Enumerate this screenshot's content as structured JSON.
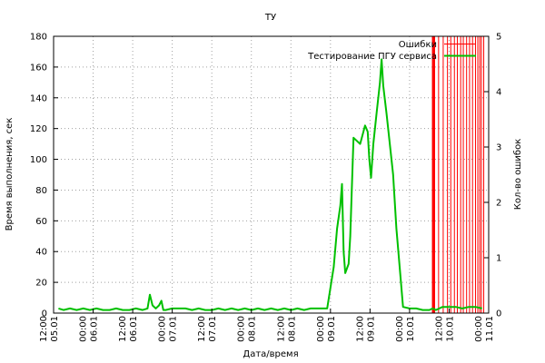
{
  "chart_data": {
    "type": "line",
    "title": "ТУ",
    "xlabel": "Дата/время",
    "ylabel": "Время выполнения, сек",
    "y2label": "Кол-во ошибок",
    "ylim": [
      0,
      180
    ],
    "y2lim": [
      0,
      5
    ],
    "yticks": [
      0,
      20,
      40,
      60,
      80,
      100,
      120,
      140,
      160,
      180
    ],
    "y2ticks": [
      0,
      1,
      2,
      3,
      4,
      5
    ],
    "xlim_hours": [
      0,
      132
    ],
    "grid": true,
    "legend_position": "top-right",
    "colors": {
      "errors": "#ff0000",
      "testing": "#00c000"
    },
    "xticks": [
      {
        "hour": 0,
        "date": "05.01",
        "time": "12:00"
      },
      {
        "hour": 12,
        "date": "06.01",
        "time": "00:00"
      },
      {
        "hour": 24,
        "date": "06.01",
        "time": "12:00"
      },
      {
        "hour": 36,
        "date": "07.01",
        "time": "00:00"
      },
      {
        "hour": 48,
        "date": "07.01",
        "time": "12:00"
      },
      {
        "hour": 60,
        "date": "08.01",
        "time": "00:00"
      },
      {
        "hour": 72,
        "date": "08.01",
        "time": "12:00"
      },
      {
        "hour": 84,
        "date": "09.01",
        "time": "00:00"
      },
      {
        "hour": 96,
        "date": "09.01",
        "time": "12:00"
      },
      {
        "hour": 108,
        "date": "10.01",
        "time": "00:00"
      },
      {
        "hour": 120,
        "date": "10.01",
        "time": "12:00"
      },
      {
        "hour": 132,
        "date": "11.01",
        "time": "00:00"
      }
    ],
    "series": [
      {
        "name": "Тестирование ПГУ сервиса",
        "axis": "y",
        "points": [
          [
            1.5,
            3
          ],
          [
            3,
            2
          ],
          [
            5,
            3
          ],
          [
            7,
            2
          ],
          [
            9,
            3
          ],
          [
            11,
            2
          ],
          [
            13,
            3
          ],
          [
            15,
            2
          ],
          [
            17,
            2
          ],
          [
            19,
            3
          ],
          [
            21,
            2
          ],
          [
            23,
            2
          ],
          [
            25,
            3
          ],
          [
            27,
            2
          ],
          [
            28.5,
            3
          ],
          [
            29.2,
            12
          ],
          [
            30,
            5
          ],
          [
            31,
            3
          ],
          [
            32,
            5
          ],
          [
            32.7,
            8
          ],
          [
            33.3,
            2
          ],
          [
            34,
            2
          ],
          [
            36,
            3
          ],
          [
            38,
            3
          ],
          [
            40,
            3
          ],
          [
            42,
            2
          ],
          [
            44,
            3
          ],
          [
            46,
            2
          ],
          [
            48,
            2
          ],
          [
            50,
            3
          ],
          [
            52,
            2
          ],
          [
            54,
            3
          ],
          [
            56,
            2
          ],
          [
            58,
            3
          ],
          [
            60,
            2
          ],
          [
            62,
            3
          ],
          [
            64,
            2
          ],
          [
            66,
            3
          ],
          [
            68,
            2
          ],
          [
            70,
            3
          ],
          [
            72,
            2
          ],
          [
            74,
            3
          ],
          [
            76,
            2
          ],
          [
            78,
            3
          ],
          [
            80,
            3
          ],
          [
            82,
            3
          ],
          [
            83,
            3
          ],
          [
            85,
            30
          ],
          [
            86,
            55
          ],
          [
            87,
            70
          ],
          [
            87.5,
            84
          ],
          [
            88,
            40
          ],
          [
            88.5,
            26
          ],
          [
            89.5,
            32
          ],
          [
            90,
            50
          ],
          [
            91,
            114
          ],
          [
            93,
            110
          ],
          [
            94,
            118
          ],
          [
            94.5,
            122
          ],
          [
            95.3,
            118
          ],
          [
            95.8,
            100
          ],
          [
            96.3,
            88
          ],
          [
            97,
            110
          ],
          [
            98,
            130
          ],
          [
            99,
            150
          ],
          [
            99.5,
            165
          ],
          [
            100,
            148
          ],
          [
            101,
            130
          ],
          [
            103,
            90
          ],
          [
            104,
            55
          ],
          [
            105,
            30
          ],
          [
            106,
            4
          ],
          [
            108,
            3
          ],
          [
            110,
            3
          ],
          [
            112,
            2
          ],
          [
            114,
            2
          ],
          [
            115,
            3
          ],
          [
            116,
            2
          ],
          [
            118,
            4
          ],
          [
            120,
            4
          ],
          [
            122,
            4
          ],
          [
            124,
            3
          ],
          [
            126,
            4
          ],
          [
            128,
            4
          ],
          [
            130,
            3
          ]
        ]
      },
      {
        "name": "Ошибки",
        "axis": "y2",
        "type": "impulse",
        "value": 5,
        "x": [
          115.2,
          115.6,
          116.8,
          118.2,
          119.5,
          120.5,
          121.6,
          122.5,
          123.5,
          124.3,
          125.3,
          126.2,
          127.1,
          128,
          128.7,
          129.3,
          129.8,
          130.5
        ]
      }
    ]
  }
}
